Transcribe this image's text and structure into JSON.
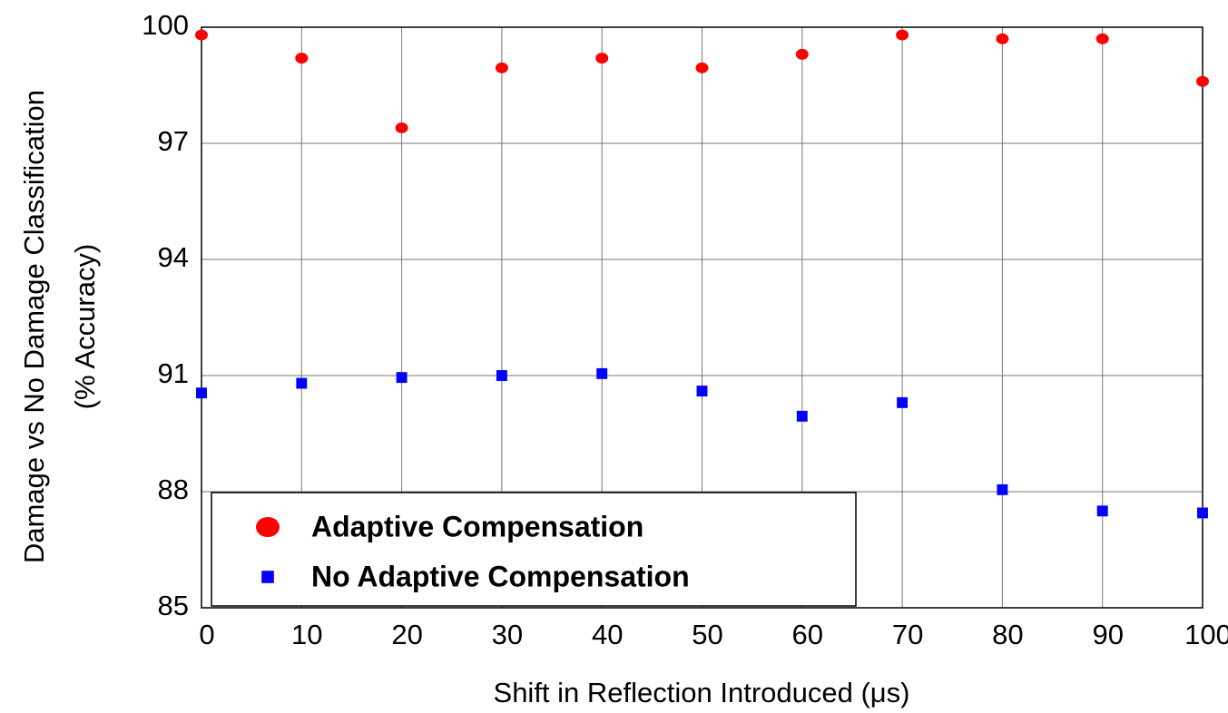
{
  "chart_data": {
    "type": "scatter",
    "x_label": "Shift in Reflection Introduced (μs)",
    "y_label": [
      "Damage vs No Damage Classification",
      "(% Accuracy)"
    ],
    "x": [
      0,
      10,
      20,
      30,
      40,
      50,
      60,
      70,
      80,
      90,
      100
    ],
    "series": [
      {
        "name": "Adaptive Compensation",
        "color": "#ff0000",
        "marker": "circle",
        "values": [
          99.8,
          99.2,
          97.4,
          98.95,
          99.2,
          98.95,
          99.3,
          99.8,
          99.7,
          99.7,
          98.6
        ]
      },
      {
        "name": "No Adaptive Compensation",
        "color": "#0000ff",
        "marker": "square",
        "values": [
          90.55,
          90.8,
          90.95,
          91.0,
          91.05,
          90.6,
          89.95,
          90.3,
          88.05,
          87.5,
          87.45
        ]
      }
    ],
    "xlim": [
      0,
      100
    ],
    "xticks": [
      0,
      10,
      20,
      30,
      40,
      50,
      60,
      70,
      80,
      90,
      100
    ],
    "ylim": [
      85,
      100
    ],
    "yticks": [
      85,
      88,
      91,
      94,
      97,
      100
    ],
    "grid": true,
    "legend": "lower left"
  }
}
